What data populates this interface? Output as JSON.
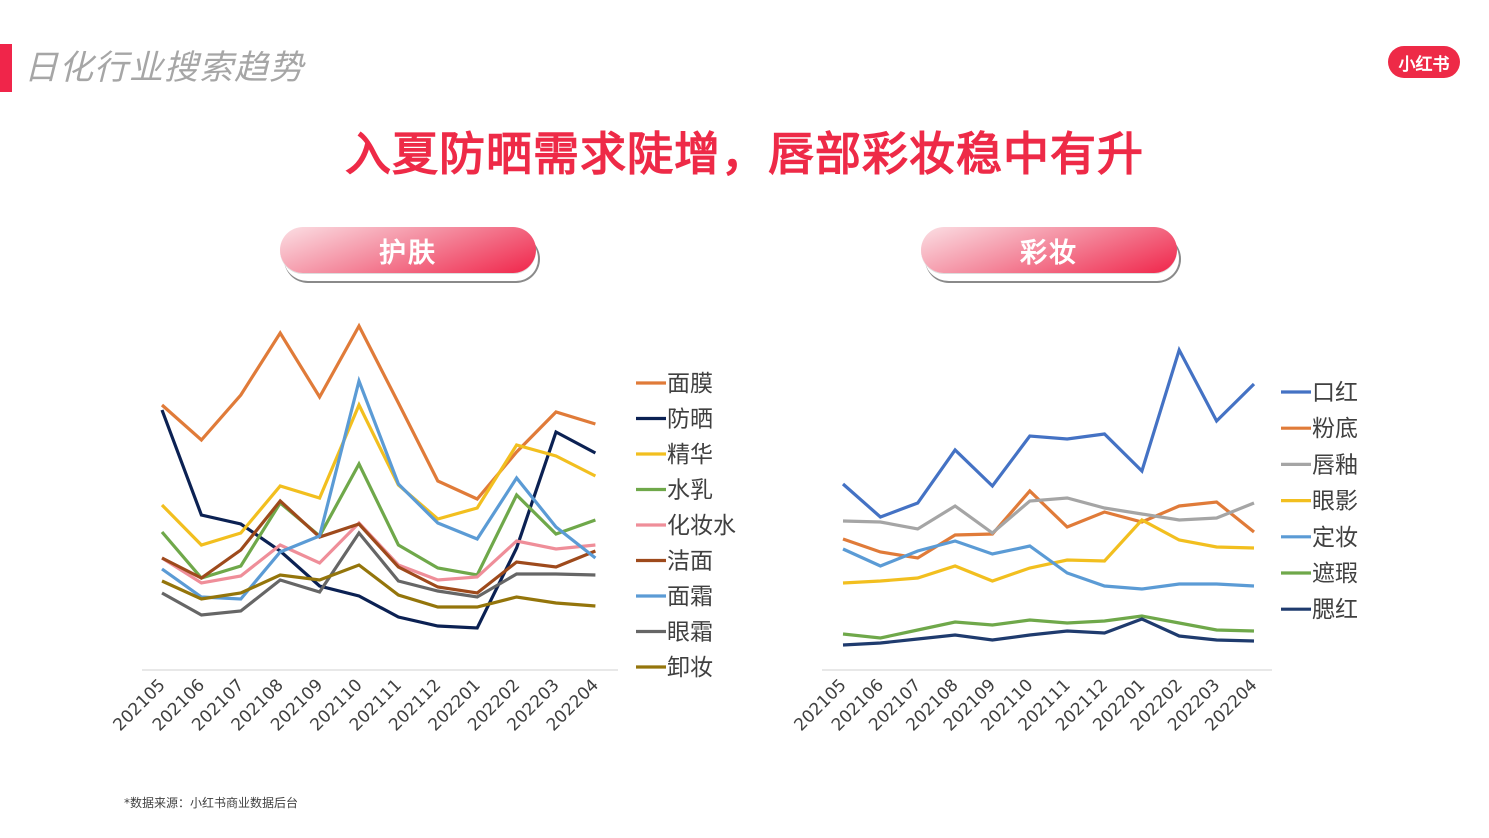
{
  "header": {
    "section_title": "日化行业搜索趋势",
    "logo_text": "小红书",
    "headline": "入夏防晒需求陡增，唇部彩妆稳中有升"
  },
  "panels": {
    "skincare_label": "护肤",
    "makeup_label": "彩妆"
  },
  "footer": {
    "source": "*数据来源：小红书商业数据后台"
  },
  "colors": {
    "accent": "#ee2a47",
    "title_gray": "#a6a6a6"
  },
  "chart_data": [
    {
      "type": "line",
      "title": "护肤",
      "xlabel": "",
      "ylabel": "",
      "y_axis_note": "y axis unlabeled; values are relative search index estimated from pixel positions",
      "grid": false,
      "legend_position": "right",
      "categories": [
        "202105",
        "202106",
        "202107",
        "202108",
        "202109",
        "202110",
        "202111",
        "202112",
        "202201",
        "202202",
        "202203",
        "202204"
      ],
      "series": [
        {
          "name": "面膜",
          "color": "#e07b39",
          "values": [
            295,
            260,
            305,
            367,
            303,
            374,
            297,
            219,
            201,
            248,
            288,
            276
          ]
        },
        {
          "name": "防晒",
          "color": "#0b2153",
          "values": [
            290,
            185,
            176,
            149,
            114,
            104,
            83,
            74,
            72,
            152,
            268,
            247
          ]
        },
        {
          "name": "精华",
          "color": "#f2bf1f",
          "values": [
            195,
            155,
            167,
            214,
            202,
            295,
            215,
            181,
            192,
            255,
            244,
            224
          ]
        },
        {
          "name": "水乳",
          "color": "#6fa84a",
          "values": [
            168,
            122,
            134,
            197,
            164,
            236,
            155,
            132,
            125,
            205,
            166,
            180
          ]
        },
        {
          "name": "化妆水",
          "color": "#ef8e99",
          "values": [
            142,
            117,
            124,
            155,
            137,
            177,
            135,
            120,
            123,
            159,
            151,
            155
          ]
        },
        {
          "name": "洁面",
          "color": "#9e4a1c",
          "values": [
            142,
            122,
            150,
            199,
            163,
            176,
            133,
            113,
            107,
            138,
            133,
            149
          ]
        },
        {
          "name": "面霜",
          "color": "#5b9bd5",
          "values": [
            131,
            103,
            101,
            148,
            164,
            319,
            216,
            177,
            161,
            222,
            173,
            142
          ]
        },
        {
          "name": "眼霜",
          "color": "#666666",
          "values": [
            107,
            85,
            89,
            120,
            108,
            167,
            119,
            109,
            103,
            126,
            126,
            125
          ]
        },
        {
          "name": "卸妆",
          "color": "#94750b",
          "values": [
            119,
            101,
            107,
            125,
            120,
            135,
            105,
            93,
            93,
            103,
            97,
            94
          ]
        }
      ]
    },
    {
      "type": "line",
      "title": "彩妆",
      "xlabel": "",
      "ylabel": "",
      "y_axis_note": "y axis unlabeled; values are relative search index estimated from pixel positions",
      "grid": false,
      "legend_position": "right",
      "categories": [
        "202105",
        "202106",
        "202107",
        "202108",
        "202109",
        "202110",
        "202111",
        "202112",
        "202201",
        "202202",
        "202203",
        "202204"
      ],
      "series": [
        {
          "name": "口红",
          "color": "#4472c4",
          "values": [
            216,
            183,
            197,
            250,
            214,
            264,
            261,
            266,
            229,
            350,
            279,
            316
          ]
        },
        {
          "name": "粉底",
          "color": "#e07b39",
          "values": [
            161,
            148,
            142,
            165,
            166,
            209,
            173,
            188,
            178,
            194,
            198,
            168
          ]
        },
        {
          "name": "唇釉",
          "color": "#a5a5a5",
          "values": [
            179,
            178,
            171,
            194,
            167,
            199,
            202,
            192,
            186,
            180,
            182,
            197
          ]
        },
        {
          "name": "眼影",
          "color": "#f2bf1f",
          "values": [
            117,
            119,
            122,
            134,
            119,
            132,
            140,
            139,
            180,
            160,
            153,
            152
          ]
        },
        {
          "name": "定妆",
          "color": "#5b9bd5",
          "values": [
            151,
            134,
            149,
            159,
            146,
            154,
            127,
            114,
            111,
            116,
            116,
            114
          ]
        },
        {
          "name": "遮瑕",
          "color": "#6fa84a",
          "values": [
            66,
            62,
            70,
            78,
            75,
            80,
            77,
            79,
            84,
            77,
            70,
            69
          ]
        },
        {
          "name": "腮红",
          "color": "#1f3b6e",
          "values": [
            55,
            57,
            61,
            65,
            60,
            65,
            69,
            67,
            81,
            64,
            60,
            59
          ]
        }
      ]
    }
  ]
}
